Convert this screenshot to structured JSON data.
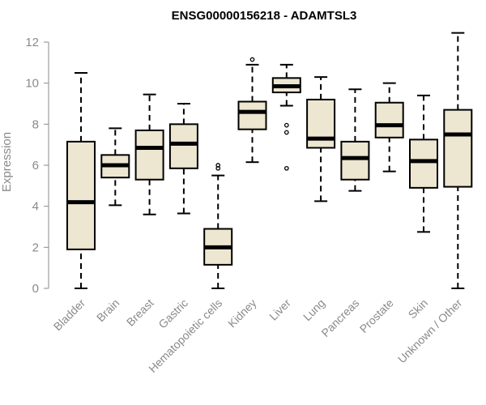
{
  "chart_data": {
    "type": "boxplot",
    "title": "ENSG00000156218 - ADAMTSL3",
    "xlabel": "",
    "ylabel": "Expression",
    "ylim": [
      0,
      12
    ],
    "yticks": [
      0,
      2,
      4,
      6,
      8,
      10,
      12
    ],
    "box_fill": "#ede6d0",
    "box_stroke": "#000000",
    "series": [
      {
        "name": "Bladder",
        "whisker_low": 0.0,
        "q1": 1.9,
        "median": 4.2,
        "q3": 7.15,
        "whisker_high": 10.5,
        "outliers": []
      },
      {
        "name": "Brain",
        "whisker_low": 4.05,
        "q1": 5.4,
        "median": 6.0,
        "q3": 6.5,
        "whisker_high": 7.8,
        "outliers": []
      },
      {
        "name": "Breast",
        "whisker_low": 3.6,
        "q1": 5.3,
        "median": 6.85,
        "q3": 7.7,
        "whisker_high": 9.45,
        "outliers": []
      },
      {
        "name": "Gastric",
        "whisker_low": 3.65,
        "q1": 5.85,
        "median": 7.05,
        "q3": 8.0,
        "whisker_high": 9.0,
        "outliers": []
      },
      {
        "name": "Hematopoietic cells",
        "whisker_low": 0.0,
        "q1": 1.15,
        "median": 2.0,
        "q3": 2.9,
        "whisker_high": 5.5,
        "outliers": [
          5.85,
          6.0
        ]
      },
      {
        "name": "Kidney",
        "whisker_low": 6.15,
        "q1": 7.75,
        "median": 8.6,
        "q3": 9.1,
        "whisker_high": 10.9,
        "outliers": [
          11.15
        ]
      },
      {
        "name": "Liver",
        "whisker_low": 8.9,
        "q1": 9.55,
        "median": 9.85,
        "q3": 10.25,
        "whisker_high": 10.9,
        "outliers": [
          7.6,
          7.95,
          5.85
        ]
      },
      {
        "name": "Lung",
        "whisker_low": 4.25,
        "q1": 6.85,
        "median": 7.3,
        "q3": 9.2,
        "whisker_high": 10.3,
        "outliers": []
      },
      {
        "name": "Pancreas",
        "whisker_low": 4.75,
        "q1": 5.3,
        "median": 6.35,
        "q3": 7.15,
        "whisker_high": 9.7,
        "outliers": []
      },
      {
        "name": "Prostate",
        "whisker_low": 5.7,
        "q1": 7.35,
        "median": 7.95,
        "q3": 9.05,
        "whisker_high": 10.0,
        "outliers": []
      },
      {
        "name": "Skin",
        "whisker_low": 2.75,
        "q1": 4.9,
        "median": 6.2,
        "q3": 7.25,
        "whisker_high": 9.4,
        "outliers": []
      },
      {
        "name": "Unknown / Other",
        "whisker_low": 0.0,
        "q1": 4.95,
        "median": 7.5,
        "q3": 8.7,
        "whisker_high": 12.45,
        "outliers": []
      }
    ]
  }
}
